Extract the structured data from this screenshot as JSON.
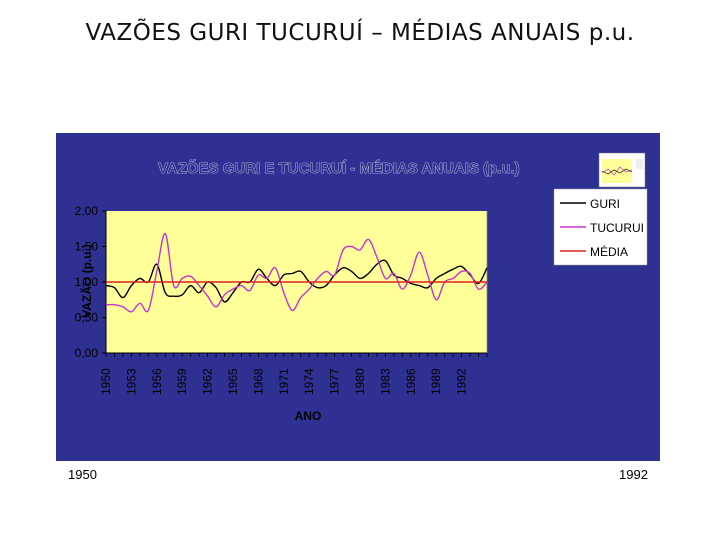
{
  "slide": {
    "title": "VAZÕES GURI TUCURUÍ – MÉDIAS ANUAIS p.u.",
    "label_start": "1950",
    "label_end": "1992"
  },
  "colors": {
    "panel_bg": "#2e3192",
    "plot_bg": "#ffff99",
    "guri": "#000000",
    "tucurui": "#cc33cc",
    "media": "#dd2222"
  },
  "chart_data": {
    "type": "line",
    "title": "VAZÕES GURI E TUCURUÍ - MÉDIAS ANUAIS (p.u.)",
    "xlabel": "ANO",
    "ylabel": "VAZÃO (p.u.)",
    "ylim": [
      0,
      2
    ],
    "yticks": [
      "2,00",
      "1,50",
      "1,00",
      "0,50",
      "0,00"
    ],
    "xticks": [
      "1950",
      "1953",
      "1956",
      "1959",
      "1962",
      "1965",
      "1968",
      "1971",
      "1974",
      "1977",
      "1980",
      "1983",
      "1986",
      "1989",
      "1992"
    ],
    "x": [
      1950,
      1951,
      1952,
      1953,
      1954,
      1955,
      1956,
      1957,
      1958,
      1959,
      1960,
      1961,
      1962,
      1963,
      1964,
      1965,
      1966,
      1967,
      1968,
      1969,
      1970,
      1971,
      1972,
      1973,
      1974,
      1975,
      1976,
      1977,
      1978,
      1979,
      1980,
      1981,
      1982,
      1983,
      1984,
      1985,
      1986,
      1987,
      1988,
      1989,
      1990,
      1991,
      1992,
      1993,
      1994,
      1995
    ],
    "legend_position": "right",
    "series": [
      {
        "name": "GURI",
        "values": [
          0.95,
          0.92,
          0.78,
          0.95,
          1.05,
          1.0,
          1.25,
          0.85,
          0.8,
          0.82,
          0.95,
          0.85,
          1.0,
          0.92,
          0.72,
          0.85,
          1.0,
          1.0,
          1.18,
          1.05,
          0.95,
          1.1,
          1.12,
          1.15,
          1.0,
          0.92,
          0.95,
          1.1,
          1.2,
          1.15,
          1.05,
          1.12,
          1.25,
          1.3,
          1.1,
          1.05,
          0.98,
          0.95,
          0.92,
          1.05,
          1.12,
          1.18,
          1.22,
          1.1,
          0.98,
          1.2
        ]
      },
      {
        "name": "TUCURUI",
        "values": [
          0.68,
          0.68,
          0.65,
          0.58,
          0.7,
          0.6,
          1.15,
          1.68,
          0.95,
          1.05,
          1.08,
          0.95,
          0.8,
          0.65,
          0.82,
          0.9,
          0.95,
          0.88,
          1.1,
          1.05,
          1.2,
          0.85,
          0.6,
          0.78,
          0.9,
          1.05,
          1.15,
          1.1,
          1.45,
          1.5,
          1.45,
          1.6,
          1.35,
          1.05,
          1.12,
          0.9,
          1.1,
          1.42,
          1.1,
          0.75,
          1.0,
          1.05,
          1.15,
          1.12,
          0.9,
          1.0
        ]
      },
      {
        "name": "MÉDIA",
        "values": [
          1.0,
          1.0,
          1.0,
          1.0,
          1.0,
          1.0,
          1.0,
          1.0,
          1.0,
          1.0,
          1.0,
          1.0,
          1.0,
          1.0,
          1.0,
          1.0,
          1.0,
          1.0,
          1.0,
          1.0,
          1.0,
          1.0,
          1.0,
          1.0,
          1.0,
          1.0,
          1.0,
          1.0,
          1.0,
          1.0,
          1.0,
          1.0,
          1.0,
          1.0,
          1.0,
          1.0,
          1.0,
          1.0,
          1.0,
          1.0,
          1.0,
          1.0,
          1.0,
          1.0,
          1.0,
          1.0
        ]
      }
    ]
  }
}
